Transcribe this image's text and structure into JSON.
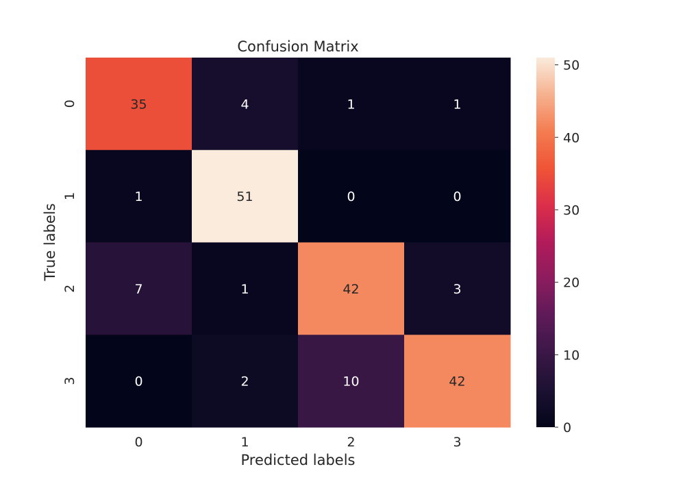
{
  "chart_data": {
    "type": "heatmap",
    "title": "Confusion Matrix",
    "xlabel": "Predicted labels",
    "ylabel": "True labels",
    "x_categories": [
      "0",
      "1",
      "2",
      "3"
    ],
    "y_categories": [
      "0",
      "1",
      "2",
      "3"
    ],
    "values": [
      [
        35,
        4,
        1,
        1
      ],
      [
        1,
        51,
        0,
        0
      ],
      [
        7,
        1,
        42,
        3
      ],
      [
        0,
        2,
        10,
        42
      ]
    ],
    "colormap": "rocket",
    "colorbar": {
      "range": [
        0,
        51
      ],
      "ticks": [
        "0",
        "10",
        "20",
        "30",
        "40",
        "50"
      ]
    },
    "annotation_colors": {
      "on_dark": "#ffffff",
      "on_light": "#262626"
    }
  }
}
